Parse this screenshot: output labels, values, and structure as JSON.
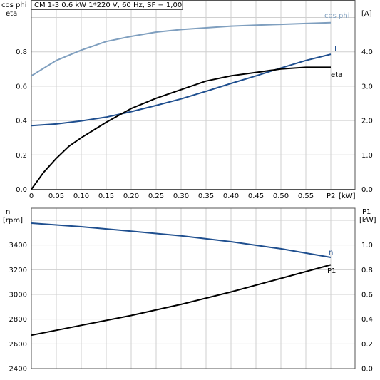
{
  "chart_data": [
    {
      "type": "line",
      "title": "CM 1-3   0.6 kW   1*220 V, 60 Hz, SF = 1,00",
      "xlabel": "P2 [kW]",
      "xlabel_tick": "P2",
      "xlabel_unit": "[kW]",
      "x_ticks": [
        "0",
        "0.05",
        "0.10",
        "0.15",
        "0.20",
        "0.25",
        "0.30",
        "0.35",
        "0.40",
        "0.45",
        "0.50",
        "0.55"
      ],
      "xlim": [
        0,
        0.6
      ],
      "ylabel_left": [
        "cos phi",
        "eta"
      ],
      "ylim_left": [
        0,
        1.0
      ],
      "y_ticks_left": [
        "0.0",
        "0.2",
        "0.4",
        "0.6",
        "0.8"
      ],
      "ylabel_right": [
        "I",
        "[A]"
      ],
      "ylim_right": [
        0,
        5.0
      ],
      "y_ticks_right": [
        "0.0",
        "1.0",
        "2.0",
        "3.0",
        "4.0"
      ],
      "grid": true,
      "series": [
        {
          "name": "cos phi",
          "axis": "left",
          "color": "#7f9fbf",
          "x": [
            0,
            0.05,
            0.1,
            0.15,
            0.2,
            0.25,
            0.3,
            0.35,
            0.4,
            0.45,
            0.5,
            0.55,
            0.6
          ],
          "y": [
            0.66,
            0.75,
            0.81,
            0.86,
            0.89,
            0.915,
            0.93,
            0.94,
            0.95,
            0.955,
            0.96,
            0.965,
            0.97
          ]
        },
        {
          "name": "I",
          "axis": "right",
          "color": "#1f4f8f",
          "x": [
            0,
            0.05,
            0.1,
            0.15,
            0.2,
            0.25,
            0.3,
            0.35,
            0.4,
            0.45,
            0.5,
            0.55,
            0.6
          ],
          "y": [
            1.85,
            1.9,
            1.99,
            2.1,
            2.26,
            2.44,
            2.63,
            2.85,
            3.08,
            3.3,
            3.53,
            3.75,
            3.93
          ]
        },
        {
          "name": "eta",
          "axis": "left",
          "color": "#000000",
          "x": [
            0,
            0.025,
            0.05,
            0.075,
            0.1,
            0.15,
            0.2,
            0.25,
            0.3,
            0.35,
            0.4,
            0.45,
            0.5,
            0.55,
            0.6
          ],
          "y": [
            0.0,
            0.1,
            0.18,
            0.25,
            0.3,
            0.39,
            0.47,
            0.53,
            0.58,
            0.63,
            0.66,
            0.68,
            0.7,
            0.71,
            0.71
          ]
        }
      ]
    },
    {
      "type": "line",
      "xlim": [
        0,
        0.6
      ],
      "ylabel_left": [
        "n",
        "[rpm]"
      ],
      "ylim_left": [
        2400,
        3600
      ],
      "y_ticks_left": [
        "2400",
        "2600",
        "2800",
        "3000",
        "3200",
        "3400"
      ],
      "ylabel_right": [
        "P1",
        "[kW]"
      ],
      "ylim_right": [
        0,
        1.2
      ],
      "y_ticks_right": [
        "0.0",
        "0.2",
        "0.4",
        "0.6",
        "0.8",
        "1.0"
      ],
      "grid": true,
      "series": [
        {
          "name": "n",
          "axis": "left",
          "color": "#1f4f8f",
          "x": [
            0,
            0.1,
            0.2,
            0.3,
            0.4,
            0.5,
            0.6
          ],
          "y": [
            3577,
            3548,
            3512,
            3475,
            3427,
            3370,
            3300
          ]
        },
        {
          "name": "P1",
          "axis": "right",
          "color": "#000000",
          "x": [
            0,
            0.1,
            0.2,
            0.3,
            0.4,
            0.5,
            0.6
          ],
          "y": [
            0.27,
            0.35,
            0.43,
            0.52,
            0.62,
            0.73,
            0.84
          ]
        }
      ]
    }
  ]
}
